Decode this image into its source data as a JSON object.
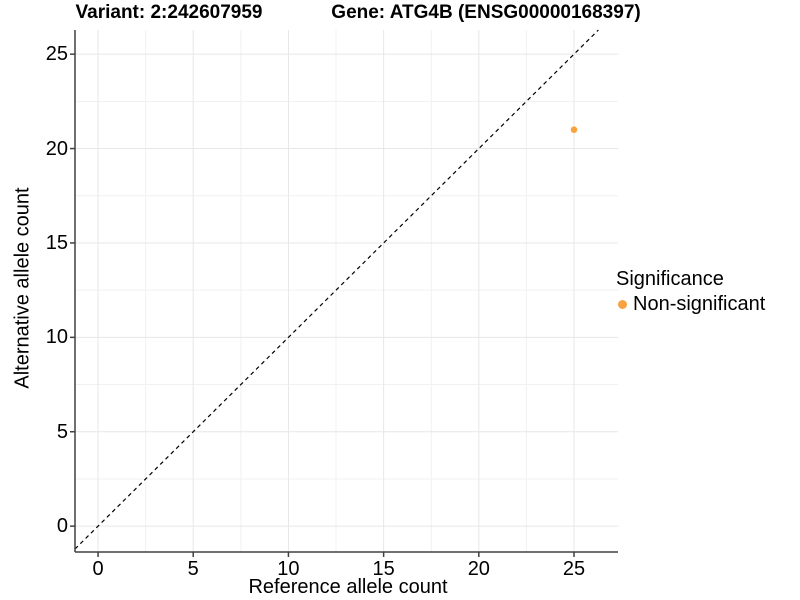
{
  "title": {
    "variant": "Variant: 2:242607959",
    "gene": "Gene: ATG4B (ENSG00000168397)"
  },
  "chart_data": {
    "type": "scatter",
    "title_left": "Variant: 2:242607959",
    "title_right": "Gene: ATG4B (ENSG00000168397)",
    "xlabel": "Reference allele count",
    "ylabel": "Alternative allele count",
    "xlim": [
      -1.21,
      27.31
    ],
    "ylim": [
      -1.37,
      26.28
    ],
    "x_ticks": [
      0,
      5,
      10,
      15,
      20,
      25
    ],
    "y_ticks": [
      0,
      5,
      10,
      15,
      20,
      25
    ],
    "minor_step": 2.5,
    "grid": true,
    "reference_line": {
      "type": "abline",
      "slope": 1,
      "intercept": 0,
      "style": "dashed",
      "color": "#000000"
    },
    "points": [
      {
        "x": 25,
        "y": 21,
        "series": "Non-significant"
      }
    ],
    "legend": {
      "title": "Significance",
      "position": "right",
      "items": [
        {
          "label": "Non-significant",
          "color": "#F9A242"
        }
      ]
    },
    "colors": {
      "grid_major": "#E7E7E7",
      "grid_minor": "#F1F1F1",
      "axis_line": "#404040",
      "tick_mark": "#404040",
      "point": "#F9A242",
      "text": "#000000"
    }
  }
}
